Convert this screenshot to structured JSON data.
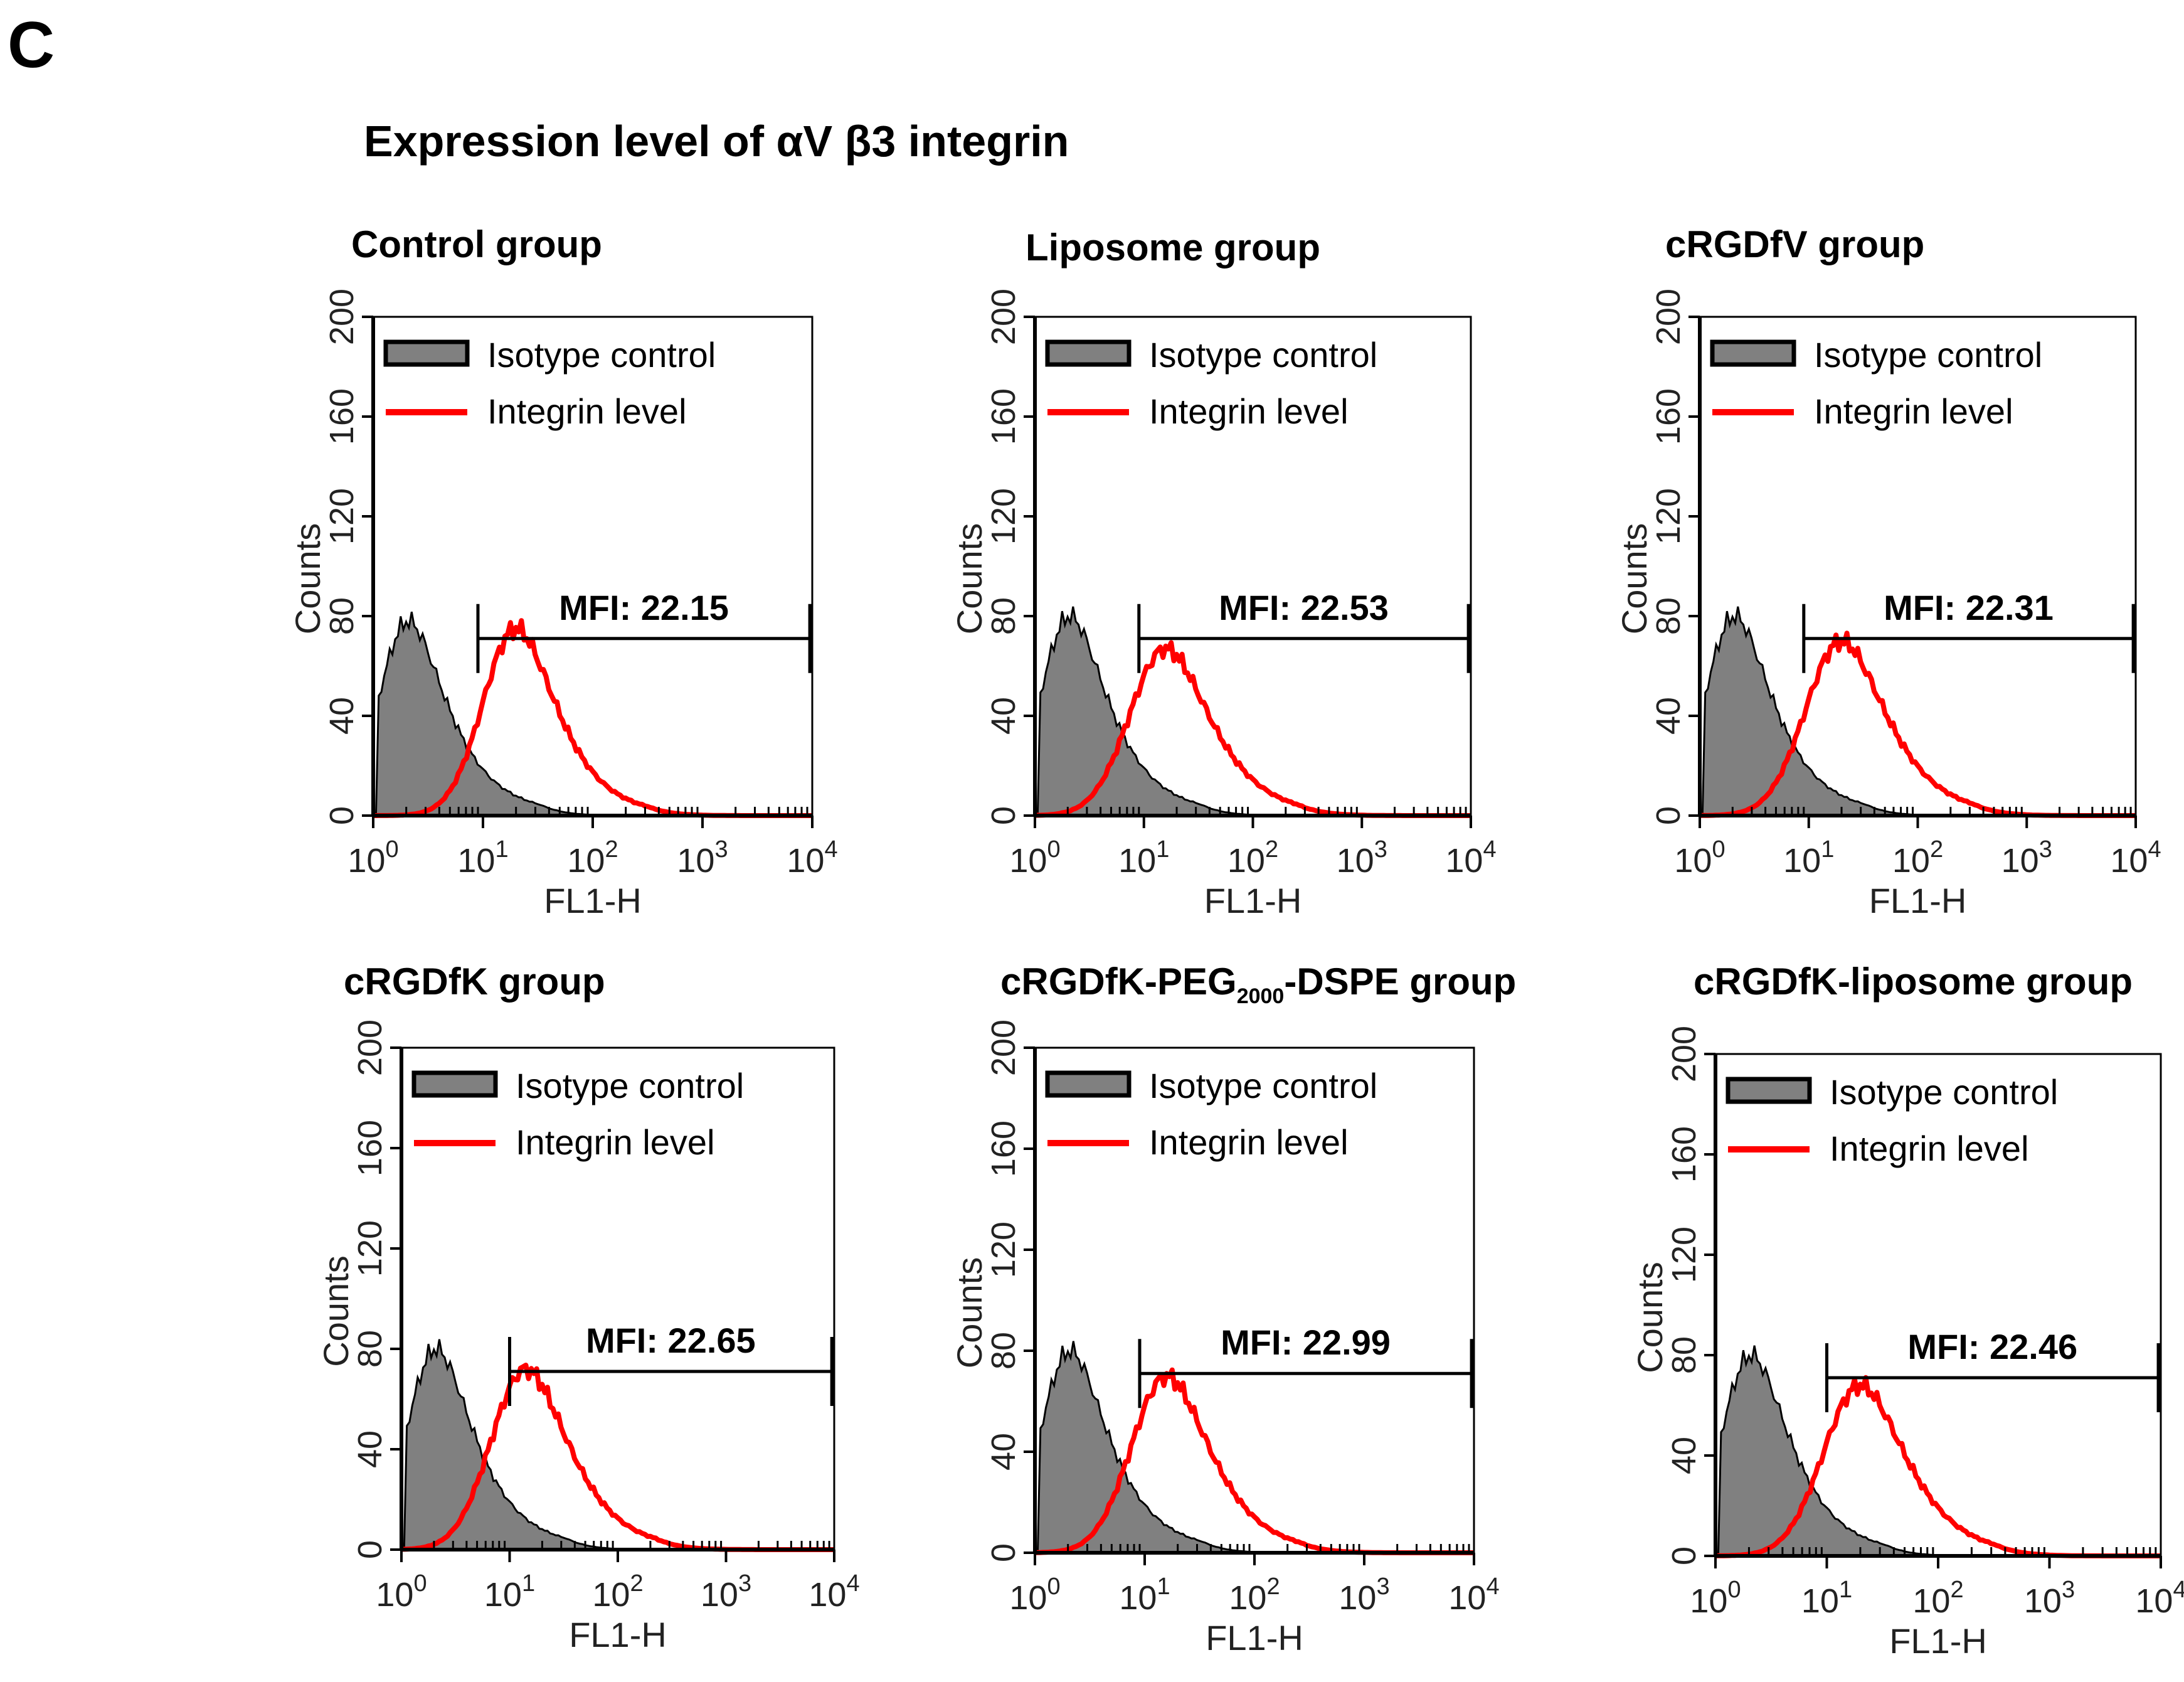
{
  "panel_letter": "C",
  "title": "Expression level of αV β3 integrin",
  "colors": {
    "isotype_fill": "#808080",
    "isotype_edge": "#000000",
    "integrin": "#ff0000",
    "axis": "#000000"
  },
  "chart_data": [
    {
      "type": "area",
      "title": "Control group",
      "title_parts": [
        {
          "t": "Control group"
        }
      ],
      "xlabel": "FL1-H",
      "ylabel": "Counts",
      "xscale": "log",
      "xlim": [
        1,
        10000
      ],
      "ylim": [
        0,
        200
      ],
      "xticks": [
        "0",
        "1",
        "2",
        "3",
        "4"
      ],
      "xtick_base": "10",
      "yticks": [
        0,
        40,
        80,
        120,
        160,
        200
      ],
      "legend": [
        "Isotype control",
        "Integrin level"
      ],
      "legend_position": "top-left",
      "gate_label": "MFI: 22.15",
      "gate_range": [
        9,
        9500
      ],
      "series": [
        {
          "name": "Isotype control",
          "style": "filled",
          "peak_log": 0.32,
          "peak_count": 78,
          "width": 0.27,
          "tail": 0.55
        },
        {
          "name": "Integrin level",
          "style": "line",
          "peak_log": 1.3,
          "peak_count": 75,
          "width": 0.3,
          "tail": 0.45
        }
      ]
    },
    {
      "type": "area",
      "title": "Liposome group",
      "title_parts": [
        {
          "t": "Liposome group"
        }
      ],
      "xlabel": "FL1-H",
      "ylabel": "Counts",
      "xscale": "log",
      "xlim": [
        1,
        10000
      ],
      "ylim": [
        0,
        200
      ],
      "xticks": [
        "0",
        "1",
        "2",
        "3",
        "4"
      ],
      "xtick_base": "10",
      "yticks": [
        0,
        40,
        80,
        120,
        160,
        200
      ],
      "legend": [
        "Isotype control",
        "Integrin level"
      ],
      "legend_position": "top-left",
      "gate_label": "MFI: 22.53",
      "gate_range": [
        9,
        9500
      ],
      "series": [
        {
          "name": "Isotype control",
          "style": "filled",
          "peak_log": 0.32,
          "peak_count": 80,
          "width": 0.27,
          "tail": 0.55
        },
        {
          "name": "Integrin level",
          "style": "line",
          "peak_log": 1.2,
          "peak_count": 67,
          "width": 0.33,
          "tail": 0.45
        }
      ]
    },
    {
      "type": "area",
      "title": "cRGDfV group",
      "title_parts": [
        {
          "t": "cRGDfV group"
        }
      ],
      "xlabel": "FL1-H",
      "ylabel": "Counts",
      "xscale": "log",
      "xlim": [
        1,
        10000
      ],
      "ylim": [
        0,
        200
      ],
      "xticks": [
        "0",
        "1",
        "2",
        "3",
        "4"
      ],
      "xtick_base": "10",
      "yticks": [
        0,
        40,
        80,
        120,
        160,
        200
      ],
      "legend": [
        "Isotype control",
        "Integrin level"
      ],
      "legend_position": "top-left",
      "gate_label": "MFI: 22.31",
      "gate_range": [
        9,
        9500
      ],
      "series": [
        {
          "name": "Isotype control",
          "style": "filled",
          "peak_log": 0.32,
          "peak_count": 80,
          "width": 0.27,
          "tail": 0.55
        },
        {
          "name": "Integrin level",
          "style": "line",
          "peak_log": 1.3,
          "peak_count": 70,
          "width": 0.33,
          "tail": 0.45
        }
      ]
    },
    {
      "type": "area",
      "title": "cRGDfK group",
      "title_parts": [
        {
          "t": "cRGDfK group"
        }
      ],
      "xlabel": "FL1-H",
      "ylabel": "Counts",
      "xscale": "log",
      "xlim": [
        1,
        10000
      ],
      "ylim": [
        0,
        200
      ],
      "xticks": [
        "0",
        "1",
        "2",
        "3",
        "4"
      ],
      "xtick_base": "10",
      "yticks": [
        0,
        40,
        80,
        120,
        160,
        200
      ],
      "legend": [
        "Isotype control",
        "Integrin level"
      ],
      "legend_position": "top-left",
      "gate_label": "MFI: 22.65",
      "gate_range": [
        10,
        9500
      ],
      "series": [
        {
          "name": "Isotype control",
          "style": "filled",
          "peak_log": 0.32,
          "peak_count": 80,
          "width": 0.27,
          "tail": 0.55
        },
        {
          "name": "Integrin level",
          "style": "line",
          "peak_log": 1.15,
          "peak_count": 72,
          "width": 0.32,
          "tail": 0.45
        }
      ]
    },
    {
      "type": "area",
      "title": "cRGDfK-PEG2000-DSPE group",
      "title_parts": [
        {
          "t": "cRGDfK-PEG"
        },
        {
          "t": "2000",
          "sub": true
        },
        {
          "t": "-DSPE group"
        }
      ],
      "xlabel": "FL1-H",
      "ylabel": "Counts",
      "xscale": "log",
      "xlim": [
        1,
        10000
      ],
      "ylim": [
        0,
        200
      ],
      "xticks": [
        "0",
        "1",
        "2",
        "3",
        "4"
      ],
      "xtick_base": "10",
      "yticks": [
        0,
        40,
        80,
        120,
        160,
        200
      ],
      "legend": [
        "Isotype control",
        "Integrin level"
      ],
      "legend_position": "top-left",
      "gate_label": "MFI: 22.99",
      "gate_range": [
        9,
        9500
      ],
      "series": [
        {
          "name": "Isotype control",
          "style": "filled",
          "peak_log": 0.32,
          "peak_count": 80,
          "width": 0.27,
          "tail": 0.55
        },
        {
          "name": "Integrin level",
          "style": "line",
          "peak_log": 1.2,
          "peak_count": 70,
          "width": 0.32,
          "tail": 0.45
        }
      ]
    },
    {
      "type": "area",
      "title": "cRGDfK-liposome group",
      "title_parts": [
        {
          "t": "cRGDfK-liposome group"
        }
      ],
      "xlabel": "FL1-H",
      "ylabel": "Counts",
      "xscale": "log",
      "xlim": [
        1,
        10000
      ],
      "ylim": [
        0,
        200
      ],
      "xticks": [
        "0",
        "1",
        "2",
        "3",
        "4"
      ],
      "xtick_base": "10",
      "yticks": [
        0,
        40,
        80,
        120,
        160,
        200
      ],
      "legend": [
        "Isotype control",
        "Integrin level"
      ],
      "legend_position": "top-left",
      "gate_label": "MFI: 22.46",
      "gate_range": [
        10,
        9500
      ],
      "series": [
        {
          "name": "Isotype control",
          "style": "filled",
          "peak_log": 0.32,
          "peak_count": 80,
          "width": 0.27,
          "tail": 0.55
        },
        {
          "name": "Integrin level",
          "style": "line",
          "peak_log": 1.3,
          "peak_count": 68,
          "width": 0.33,
          "tail": 0.45
        }
      ]
    }
  ]
}
